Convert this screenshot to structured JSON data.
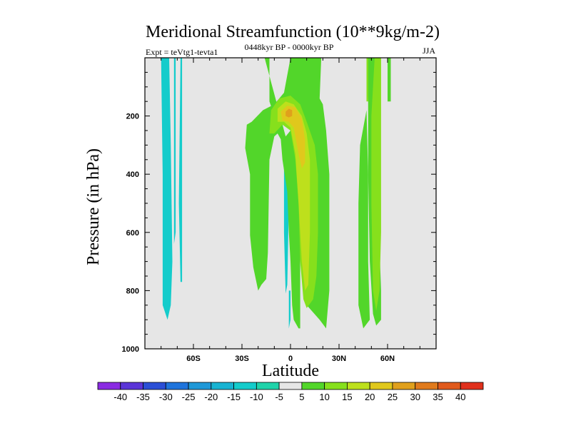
{
  "chart_data": {
    "type": "heatmap",
    "title": "Meridional Streamfunction (10**9kg/m-2)",
    "subtitle_left": "Expt = teVtg1-tevta1",
    "subtitle_center": "0448kyr BP - 0000kyr BP",
    "subtitle_right": "JJA",
    "xlabel": "Latitude",
    "ylabel": "Pressure (in hPa)",
    "xlim": [
      -90,
      90
    ],
    "ylim": [
      1000,
      0
    ],
    "x_ticks": [
      {
        "value": -60,
        "label": "60S"
      },
      {
        "value": -30,
        "label": "30S"
      },
      {
        "value": 0,
        "label": "0"
      },
      {
        "value": 30,
        "label": "30N"
      },
      {
        "value": 60,
        "label": "60N"
      }
    ],
    "y_ticks": [
      {
        "value": 200,
        "label": "200"
      },
      {
        "value": 400,
        "label": "400"
      },
      {
        "value": 600,
        "label": "600"
      },
      {
        "value": 800,
        "label": "800"
      },
      {
        "value": 1000,
        "label": "1000"
      }
    ],
    "colorbar": {
      "labels": [
        "-40",
        "-35",
        "-30",
        "-25",
        "-20",
        "-15",
        "-10",
        "-5",
        "5",
        "10",
        "15",
        "20",
        "25",
        "30",
        "35",
        "40"
      ],
      "colors": [
        "#8a2be2",
        "#5b35d8",
        "#2b4fd6",
        "#1f74dc",
        "#1f98d8",
        "#17b3d2",
        "#14cccb",
        "#1fd3aa",
        "#e6e6e6",
        "#52d62a",
        "#86e01c",
        "#bde01c",
        "#e0c81c",
        "#e0a01c",
        "#e07a1c",
        "#e05a1c",
        "#e0301c"
      ]
    },
    "background_color": "#e6e6e6",
    "regions": [
      {
        "name": "neg-band-70s",
        "level": -10,
        "color": "#14cccb",
        "points": [
          [
            -80,
            0
          ],
          [
            -75,
            0
          ],
          [
            -74,
            300
          ],
          [
            -73,
            700
          ],
          [
            -74,
            850
          ],
          [
            -76,
            900
          ],
          [
            -79,
            850
          ],
          [
            -79,
            400
          ]
        ]
      },
      {
        "name": "neg-strip-64s",
        "level": -10,
        "color": "#14cccb",
        "points": [
          [
            -68,
            0
          ],
          [
            -67,
            0
          ],
          [
            -67,
            500
          ],
          [
            -67,
            770
          ],
          [
            -68,
            770
          ],
          [
            -69,
            500
          ]
        ]
      },
      {
        "name": "neg-strip-68s",
        "level": -10,
        "color": "#14cccb",
        "points": [
          [
            -72,
            0
          ],
          [
            -71,
            0
          ],
          [
            -71,
            600
          ],
          [
            -72,
            640
          ]
        ]
      },
      {
        "name": "neg-strip-3s",
        "level": -10,
        "color": "#14cccb",
        "points": [
          [
            -4,
            280
          ],
          [
            -2,
            280
          ],
          [
            -1,
            500
          ],
          [
            -2,
            780
          ],
          [
            -3,
            810
          ],
          [
            -4,
            600
          ]
        ]
      },
      {
        "name": "neg-blob-0",
        "level": -10,
        "color": "#14cccb",
        "points": [
          [
            -1,
            800
          ],
          [
            0,
            800
          ],
          [
            0,
            900
          ],
          [
            -1,
            930
          ]
        ]
      },
      {
        "name": "pos5-main",
        "level": 5,
        "color": "#52d62a",
        "points": [
          [
            -16,
            0
          ],
          [
            -13,
            0
          ],
          [
            -13,
            150
          ],
          [
            -10,
            200
          ],
          [
            -5,
            230
          ],
          [
            0,
            220
          ],
          [
            5,
            320
          ],
          [
            8,
            600
          ],
          [
            10,
            850
          ],
          [
            18,
            900
          ],
          [
            22,
            930
          ],
          [
            24,
            800
          ],
          [
            24,
            400
          ],
          [
            22,
            250
          ],
          [
            20,
            160
          ],
          [
            18,
            140
          ],
          [
            19,
            0
          ],
          [
            0,
            0
          ],
          [
            -4,
            120
          ],
          [
            -10,
            160
          ],
          [
            -17,
            180
          ],
          [
            -24,
            220
          ],
          [
            -27,
            230
          ],
          [
            -28,
            310
          ],
          [
            -25,
            400
          ],
          [
            -25,
            610
          ],
          [
            -23,
            720
          ],
          [
            -20,
            800
          ],
          [
            -18,
            780
          ],
          [
            -15,
            760
          ],
          [
            -14,
            670
          ],
          [
            -13,
            350
          ],
          [
            -10,
            270
          ],
          [
            -8,
            260
          ],
          [
            -6,
            280
          ],
          [
            -5,
            350
          ],
          [
            -2,
            460
          ],
          [
            -1,
            600
          ],
          [
            0,
            700
          ],
          [
            1,
            850
          ],
          [
            2,
            900
          ],
          [
            5,
            930
          ],
          [
            6,
            930
          ],
          [
            6,
            800
          ],
          [
            6,
            400
          ],
          [
            3,
            260
          ],
          [
            0,
            250
          ],
          [
            -3,
            270
          ]
        ]
      },
      {
        "name": "pos10-main",
        "level": 10,
        "color": "#86e01c",
        "points": [
          [
            -12,
            180
          ],
          [
            -7,
            140
          ],
          [
            0,
            130
          ],
          [
            6,
            160
          ],
          [
            10,
            220
          ],
          [
            15,
            300
          ],
          [
            17,
            400
          ],
          [
            17,
            600
          ],
          [
            16,
            750
          ],
          [
            14,
            830
          ],
          [
            10,
            860
          ],
          [
            8,
            830
          ],
          [
            6,
            700
          ],
          [
            5,
            500
          ],
          [
            3,
            350
          ],
          [
            0,
            250
          ],
          [
            -5,
            230
          ],
          [
            -10,
            260
          ],
          [
            -13,
            260
          ]
        ]
      },
      {
        "name": "pos15-main",
        "level": 15,
        "color": "#bde01c",
        "points": [
          [
            -8,
            175
          ],
          [
            -3,
            150
          ],
          [
            2,
            160
          ],
          [
            7,
            200
          ],
          [
            10,
            260
          ],
          [
            12,
            350
          ],
          [
            12,
            600
          ],
          [
            11,
            780
          ],
          [
            9,
            800
          ],
          [
            7,
            700
          ],
          [
            5,
            500
          ],
          [
            3,
            330
          ],
          [
            0,
            240
          ],
          [
            -4,
            220
          ],
          [
            -8,
            220
          ]
        ]
      },
      {
        "name": "pos20-main",
        "level": 20,
        "color": "#e0c81c",
        "points": [
          [
            -6,
            185
          ],
          [
            -2,
            165
          ],
          [
            3,
            170
          ],
          [
            7,
            210
          ],
          [
            9,
            280
          ],
          [
            9,
            360
          ],
          [
            7,
            380
          ],
          [
            5,
            330
          ],
          [
            2,
            240
          ],
          [
            -1,
            220
          ],
          [
            -5,
            215
          ]
        ]
      },
      {
        "name": "pos25-core",
        "level": 25,
        "color": "#e0a01c",
        "points": [
          [
            -3,
            185
          ],
          [
            -1,
            175
          ],
          [
            1,
            180
          ],
          [
            1,
            200
          ],
          [
            -1,
            205
          ],
          [
            -3,
            200
          ]
        ]
      },
      {
        "name": "pos5-nh",
        "level": 5,
        "color": "#52d62a",
        "points": [
          [
            47,
            0
          ],
          [
            53,
            0
          ],
          [
            53,
            150
          ],
          [
            54,
            400
          ],
          [
            55,
            650
          ],
          [
            56,
            800
          ],
          [
            56,
            900
          ],
          [
            53,
            920
          ],
          [
            51,
            880
          ],
          [
            49,
            700
          ],
          [
            48,
            400
          ],
          [
            48,
            150
          ]
        ]
      },
      {
        "name": "pos5-nh-left",
        "level": 5,
        "color": "#52d62a",
        "points": [
          [
            43,
            300
          ],
          [
            47,
            180
          ],
          [
            48,
            400
          ],
          [
            48,
            700
          ],
          [
            49,
            900
          ],
          [
            45,
            930
          ],
          [
            42,
            850
          ],
          [
            42,
            500
          ]
        ]
      },
      {
        "name": "pos10-nh",
        "level": 10,
        "color": "#86e01c",
        "points": [
          [
            52,
            0
          ],
          [
            56,
            0
          ],
          [
            56,
            200
          ],
          [
            56,
            600
          ],
          [
            55,
            800
          ],
          [
            53,
            870
          ],
          [
            51,
            800
          ],
          [
            50,
            500
          ],
          [
            50,
            200
          ]
        ]
      },
      {
        "name": "pos10-nh-top",
        "level": 10,
        "color": "#86e01c",
        "points": [
          [
            47,
            0
          ],
          [
            48,
            0
          ],
          [
            48,
            150
          ],
          [
            47,
            150
          ]
        ]
      },
      {
        "name": "pos5-nh-right",
        "level": 5,
        "color": "#52d62a",
        "points": [
          [
            60,
            0
          ],
          [
            62,
            0
          ],
          [
            62,
            150
          ],
          [
            60,
            150
          ]
        ]
      }
    ]
  }
}
